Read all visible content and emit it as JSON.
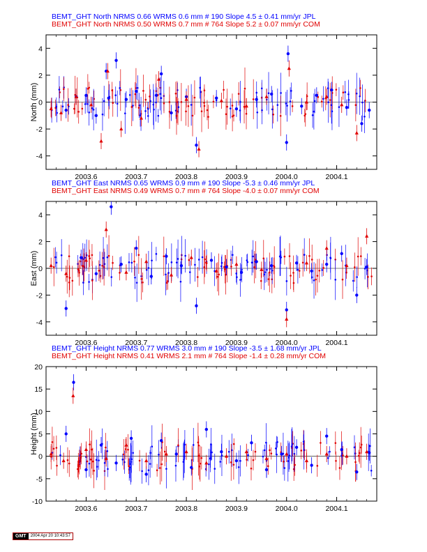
{
  "colors": {
    "jpl": "#0000ff",
    "com": "#e00000",
    "axis": "#000000"
  },
  "gmt_badge": {
    "logo": "GMT",
    "timestamp": "2004 Apr 20 10:43:57"
  },
  "chart_data": [
    {
      "type": "scatter",
      "ylabel": "North (mm)",
      "xlim": [
        2003.52,
        2004.18
      ],
      "ylim": [
        -5,
        5
      ],
      "x_ticks": [
        "2003.6",
        "2003.7",
        "2003.8",
        "2003.9",
        "2004.0",
        "2004.1"
      ],
      "y_ticks": [
        "-4",
        "-2",
        "0",
        "2",
        "4"
      ],
      "x_tick_values": [
        2003.6,
        2003.7,
        2003.8,
        2003.9,
        2004.0,
        2004.1
      ],
      "y_tick_values": [
        -4,
        -2,
        0,
        2,
        4
      ],
      "legend": [
        {
          "text": "BEMT_GHT North NRMS 0.66 WRMS  0.6 mm # 190 Slope    4.5 ±  0.41 mm/yr JPL",
          "color": "#0000ff"
        },
        {
          "text": "BEMT_GHT North NRMS 0.50 WRMS  0.7 mm # 764 Slope    5.2 ±  0.07 mm/yr COM",
          "color": "#e00000"
        }
      ],
      "series": [
        {
          "name": "JPL",
          "color": "#0000ff",
          "x": [
            2003.56,
            2003.58,
            2003.6,
            2003.62,
            2003.64,
            2003.645,
            2003.66,
            2003.68,
            2003.7,
            2003.74,
            2003.75,
            2003.77,
            2003.8,
            2003.82,
            2003.86,
            2003.9,
            2003.94,
            2003.97,
            2004.0,
            2004.003,
            2004.03,
            2004.06,
            2004.09,
            2004.12,
            2004.15,
            2004.165
          ],
          "y": [
            -0.6,
            0.4,
            0.5,
            -1.0,
            2.3,
            0.3,
            3.1,
            0.2,
            0.8,
            0.5,
            2.1,
            -0.8,
            0.4,
            -3.2,
            0.3,
            -0.5,
            0.2,
            0.6,
            -3.0,
            3.6,
            -0.3,
            0.5,
            0.9,
            -0.4,
            -1.6,
            -0.6
          ]
        },
        {
          "name": "COM",
          "color": "#e00000",
          "x": [
            2003.53,
            2003.55,
            2003.58,
            2003.61,
            2003.63,
            2003.643,
            2003.67,
            2003.71,
            2003.745,
            2003.8,
            2003.825,
            2003.87,
            2003.92,
            2003.96,
            2004.005,
            2004.04,
            2004.08,
            2004.11,
            2004.14
          ],
          "y": [
            -0.5,
            -0.8,
            0.4,
            -0.2,
            -2.9,
            2.3,
            -2.0,
            -1.2,
            1.7,
            0.2,
            -3.5,
            0.1,
            -0.3,
            0.4,
            2.5,
            0.0,
            0.4,
            -0.2,
            -2.3
          ]
        }
      ]
    },
    {
      "type": "scatter",
      "ylabel": "East (mm)",
      "xlim": [
        2003.52,
        2004.18
      ],
      "ylim": [
        -5,
        5
      ],
      "x_ticks": [
        "2003.6",
        "2003.7",
        "2003.8",
        "2003.9",
        "2004.0",
        "2004.1"
      ],
      "y_ticks": [
        "-4",
        "-2",
        "0",
        "2",
        "4"
      ],
      "x_tick_values": [
        2003.6,
        2003.7,
        2003.8,
        2003.9,
        2004.0,
        2004.1
      ],
      "y_tick_values": [
        -4,
        -2,
        0,
        2,
        4
      ],
      "legend": [
        {
          "text": "BEMT_GHT East NRMS 0.65 WRMS  0.9 mm # 190 Slope   -5.3 ±  0.46 mm/yr JPL",
          "color": "#0000ff"
        },
        {
          "text": "BEMT_GHT East NRMS 0.49 WRMS  0.7 mm # 764 Slope   -4.0 ±  0.07 mm/yr COM",
          "color": "#e00000"
        }
      ],
      "series": [
        {
          "name": "JPL",
          "color": "#0000ff",
          "x": [
            2003.56,
            2003.59,
            2003.62,
            2003.65,
            2003.67,
            2003.7,
            2003.73,
            2003.76,
            2003.79,
            2003.82,
            2003.85,
            2003.88,
            2003.91,
            2003.94,
            2003.97,
            2004.0,
            2004.02,
            2004.05,
            2004.08,
            2004.11,
            2004.14,
            2004.16
          ],
          "y": [
            -3.0,
            0.8,
            -0.4,
            4.6,
            0.3,
            1.5,
            -0.6,
            0.9,
            0.2,
            -2.8,
            0.6,
            0.1,
            -0.3,
            0.5,
            0.2,
            -3.1,
            0.4,
            -0.2,
            0.3,
            1.1,
            -2.0,
            0.1
          ]
        },
        {
          "name": "COM",
          "color": "#e00000",
          "x": [
            2003.53,
            2003.56,
            2003.6,
            2003.64,
            2003.68,
            2003.72,
            2003.77,
            2003.81,
            2003.86,
            2003.9,
            2003.95,
            2004.0,
            2004.04,
            2004.08,
            2004.12,
            2004.16
          ],
          "y": [
            0.2,
            -0.4,
            0.6,
            2.9,
            -0.3,
            0.5,
            -0.5,
            0.8,
            -0.2,
            0.3,
            -0.1,
            -3.8,
            0.4,
            1.5,
            0.2,
            2.4
          ]
        }
      ]
    },
    {
      "type": "scatter",
      "ylabel": "Height (mm)",
      "xlim": [
        2003.52,
        2004.18
      ],
      "ylim": [
        -10,
        20
      ],
      "x_ticks": [
        "2003.6",
        "2003.7",
        "2003.8",
        "2003.9",
        "2004.0",
        "2004.1"
      ],
      "y_ticks": [
        "-10",
        "-5",
        "0",
        "5",
        "10",
        "15",
        "20"
      ],
      "x_tick_values": [
        2003.6,
        2003.7,
        2003.8,
        2003.9,
        2004.0,
        2004.1
      ],
      "y_tick_values": [
        -10,
        -5,
        0,
        5,
        10,
        15,
        20
      ],
      "legend": [
        {
          "text": "BEMT_GHT Height NRMS 0.77 WRMS  3.0 mm # 190 Slope   -3.5 ±  1.68 mm/yr JPL",
          "color": "#0000ff"
        },
        {
          "text": "BEMT_GHT Height NRMS 0.41 WRMS  2.1 mm # 764 Slope   -1.4 ±  0.28 mm/yr COM",
          "color": "#e00000"
        }
      ],
      "series": [
        {
          "name": "JPL",
          "color": "#0000ff",
          "x": [
            2003.56,
            2003.575,
            2003.6,
            2003.63,
            2003.66,
            2003.69,
            2003.72,
            2003.75,
            2003.78,
            2003.81,
            2003.84,
            2003.87,
            2003.9,
            2003.93,
            2003.96,
            2003.99,
            2004.02,
            2004.05,
            2004.08,
            2004.11,
            2004.14,
            2004.165
          ],
          "y": [
            5.0,
            16.5,
            -3.0,
            2.5,
            -1.5,
            4.0,
            -4.0,
            3.5,
            0.5,
            -2.5,
            6.0,
            1.0,
            -1.0,
            3.0,
            -3.0,
            0.5,
            2.0,
            -2.0,
            4.5,
            1.5,
            -3.5,
            0.8
          ]
        },
        {
          "name": "COM",
          "color": "#e00000",
          "x": [
            2003.53,
            2003.555,
            2003.574,
            2003.6,
            2003.64,
            2003.68,
            2003.72,
            2003.76,
            2003.8,
            2003.84,
            2003.88,
            2003.92,
            2003.96,
            2004.0,
            2004.04,
            2004.08,
            2004.12,
            2004.16
          ],
          "y": [
            0.5,
            -1.0,
            13.5,
            1.5,
            -0.5,
            2.5,
            -1.0,
            0.5,
            1.0,
            -1.5,
            0.0,
            1.0,
            -0.5,
            0.5,
            -1.0,
            0.5,
            0.0,
            1.0
          ]
        }
      ]
    }
  ]
}
